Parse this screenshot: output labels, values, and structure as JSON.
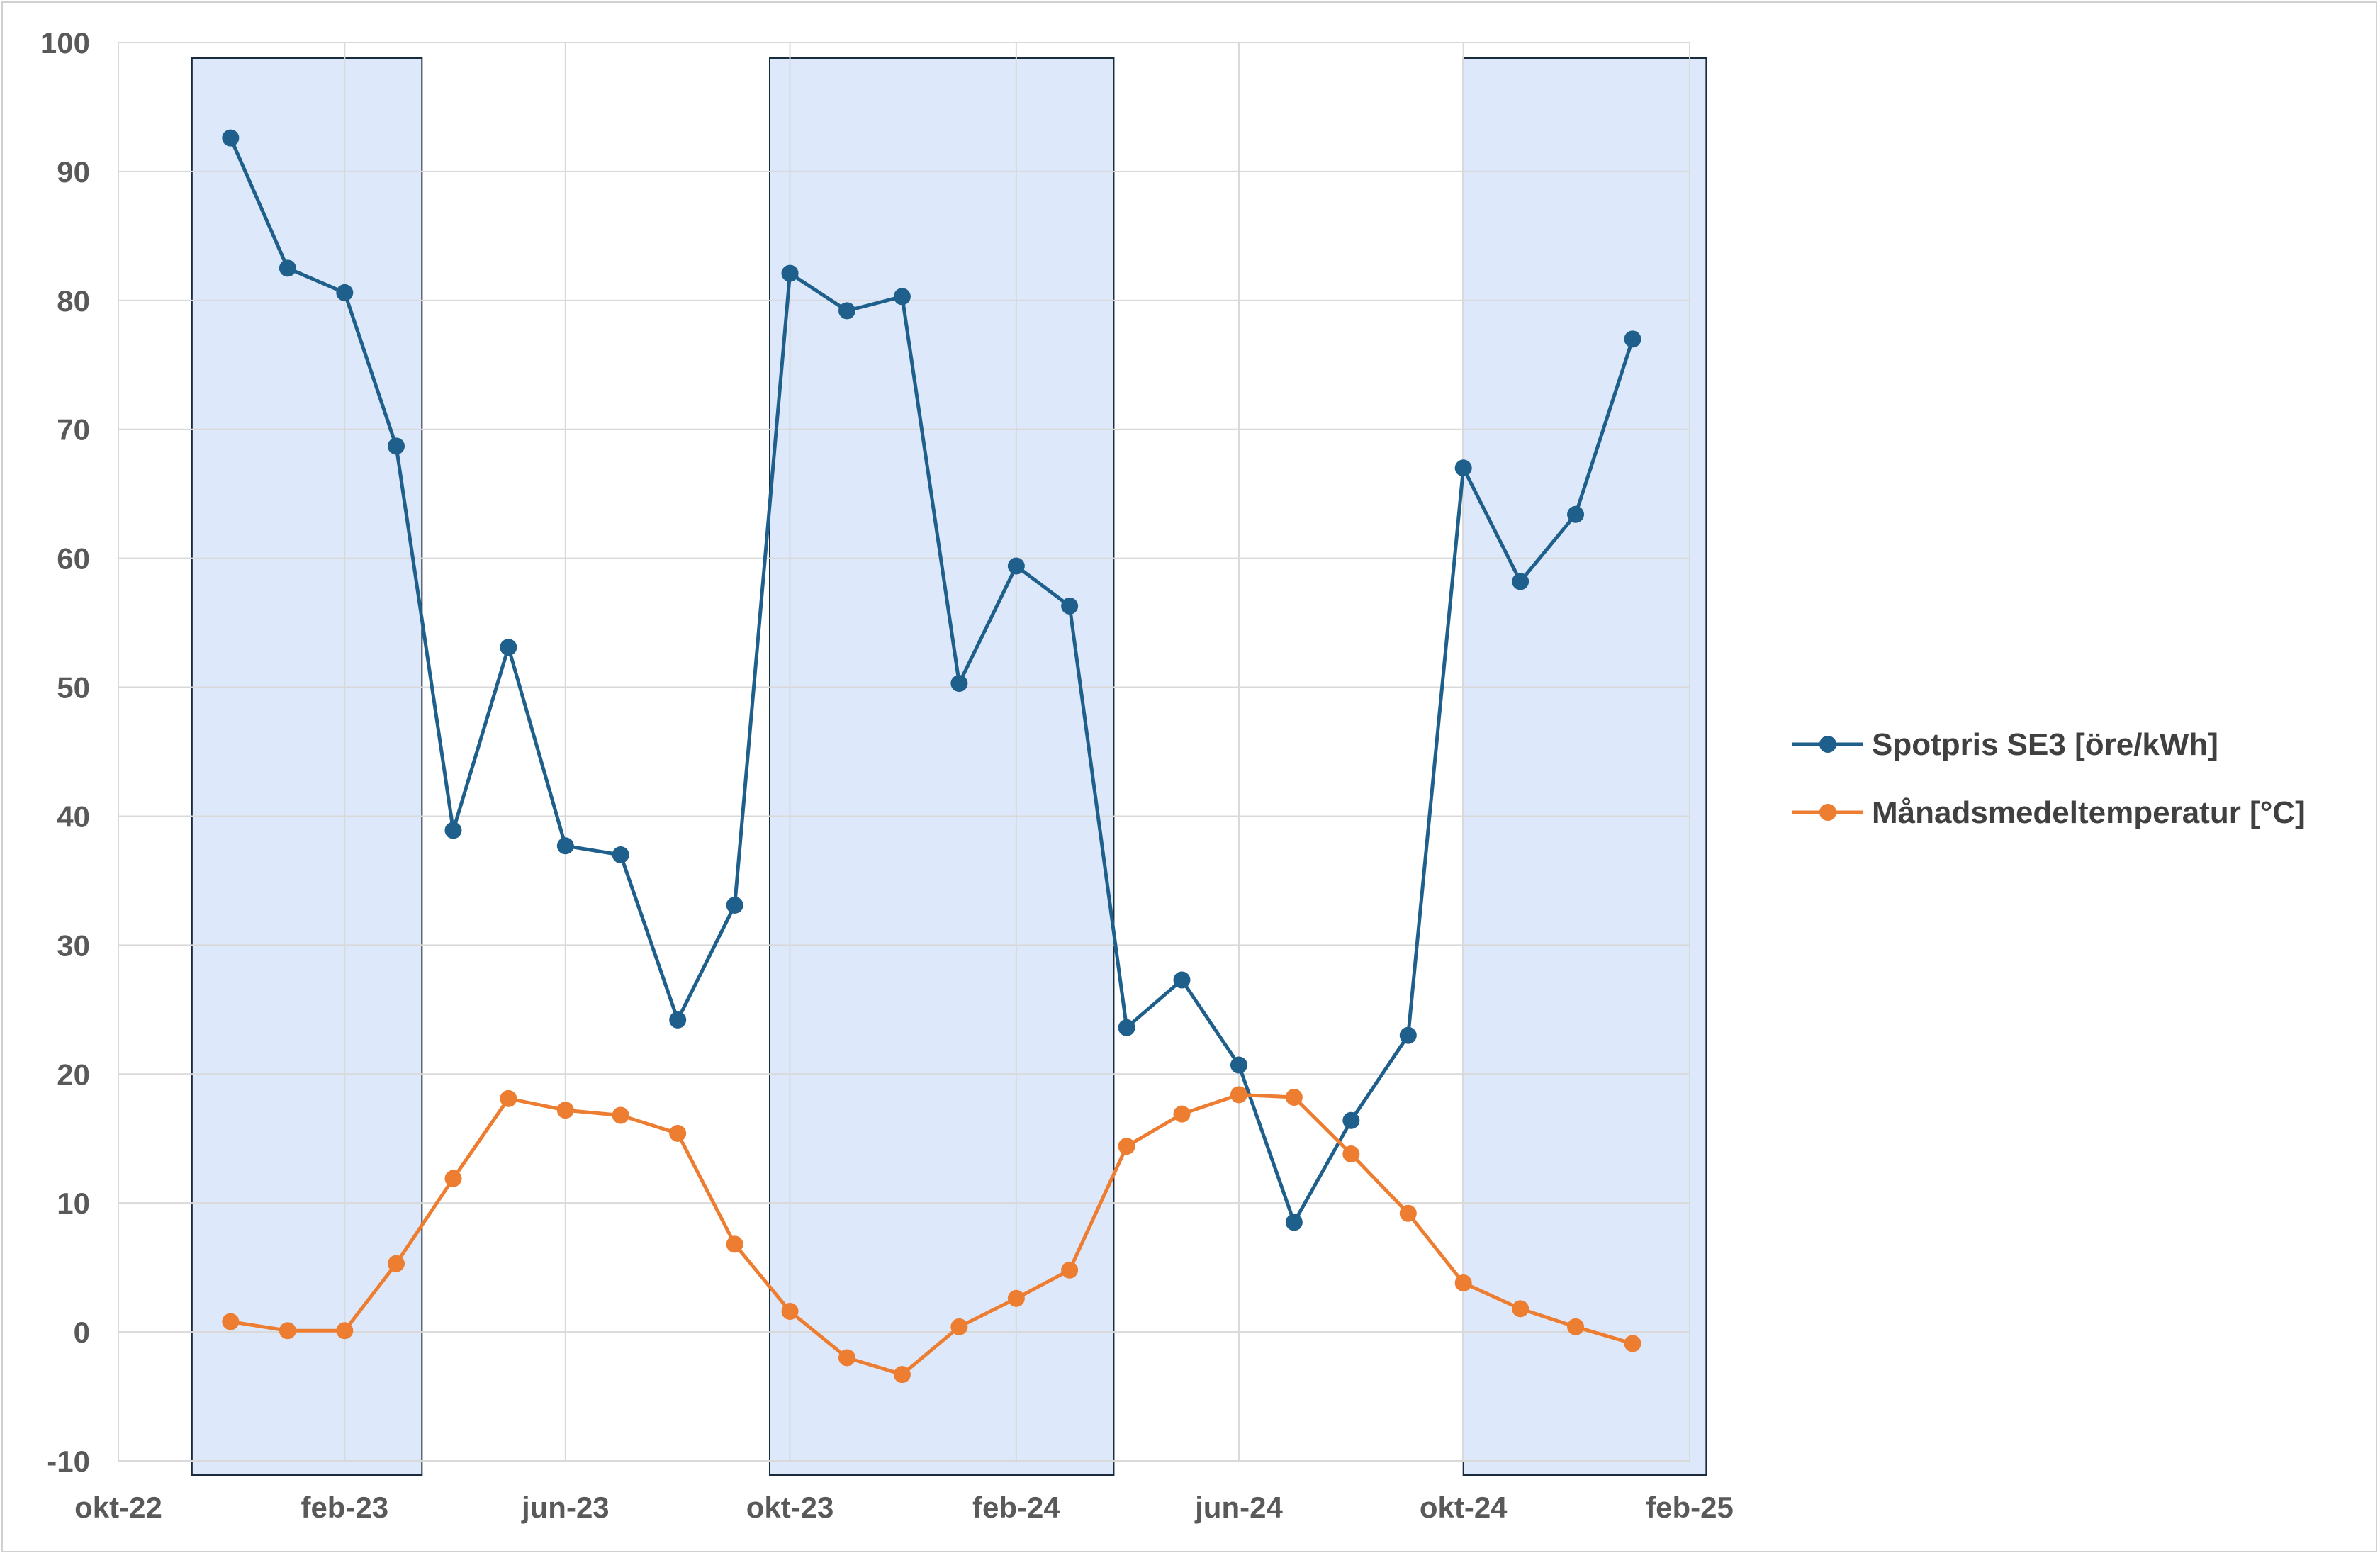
{
  "chart_data": {
    "type": "line",
    "title": "",
    "xlabel": "",
    "ylabel": "",
    "ylim": [
      -10,
      100
    ],
    "y_ticks": [
      -10,
      0,
      10,
      20,
      30,
      40,
      50,
      60,
      70,
      80,
      90,
      100
    ],
    "x_range": [
      "2022-10-01",
      "2025-02-01"
    ],
    "x_ticks": [
      {
        "date": "2022-10-01",
        "label": "okt-22"
      },
      {
        "date": "2023-02-01",
        "label": "feb-23"
      },
      {
        "date": "2023-06-01",
        "label": "jun-23"
      },
      {
        "date": "2023-10-01",
        "label": "okt-23"
      },
      {
        "date": "2024-02-01",
        "label": "feb-24"
      },
      {
        "date": "2024-06-01",
        "label": "jun-24"
      },
      {
        "date": "2024-10-01",
        "label": "okt-24"
      },
      {
        "date": "2025-02-01",
        "label": "feb-25"
      }
    ],
    "grid": true,
    "legend_position": "right",
    "highlight_periods": [
      {
        "start": "2022-11-10",
        "end": "2023-03-15",
        "color": "#dde8fb"
      },
      {
        "start": "2023-09-20",
        "end": "2024-03-25",
        "color": "#dde8fb"
      },
      {
        "start": "2024-10-01",
        "end": "2025-02-10",
        "color": "#dde8fb"
      }
    ],
    "x": [
      "2022-12-01",
      "2023-01-01",
      "2023-02-01",
      "2023-03-01",
      "2023-04-01",
      "2023-05-01",
      "2023-06-01",
      "2023-07-01",
      "2023-08-01",
      "2023-09-01",
      "2023-10-01",
      "2023-11-01",
      "2023-12-01",
      "2024-01-01",
      "2024-02-01",
      "2024-03-01",
      "2024-04-01",
      "2024-05-01",
      "2024-06-01",
      "2024-07-01",
      "2024-08-01",
      "2024-09-01",
      "2024-10-01",
      "2024-11-01",
      "2024-12-01",
      "2025-01-01"
    ],
    "series": [
      {
        "name": "Spotpris SE3 [öre/kWh]",
        "color": "#1f5f8b",
        "values": [
          92.6,
          82.5,
          80.6,
          68.7,
          38.9,
          53.1,
          37.7,
          37.0,
          24.2,
          33.1,
          82.1,
          79.2,
          80.3,
          50.3,
          59.4,
          56.3,
          23.6,
          27.3,
          20.7,
          8.5,
          16.4,
          23.0,
          67.0,
          58.2,
          63.4,
          77.0
        ]
      },
      {
        "name": "Månadsmedeltemperatur [°C]",
        "color": "#ed7d31",
        "values": [
          0.8,
          0.1,
          0.1,
          5.3,
          11.9,
          18.1,
          17.2,
          16.8,
          15.4,
          6.8,
          1.6,
          -2.0,
          -3.3,
          0.4,
          2.6,
          4.8,
          14.4,
          16.9,
          18.4,
          18.2,
          13.8,
          9.2,
          3.8,
          1.8,
          0.4,
          -0.9
        ]
      }
    ]
  }
}
